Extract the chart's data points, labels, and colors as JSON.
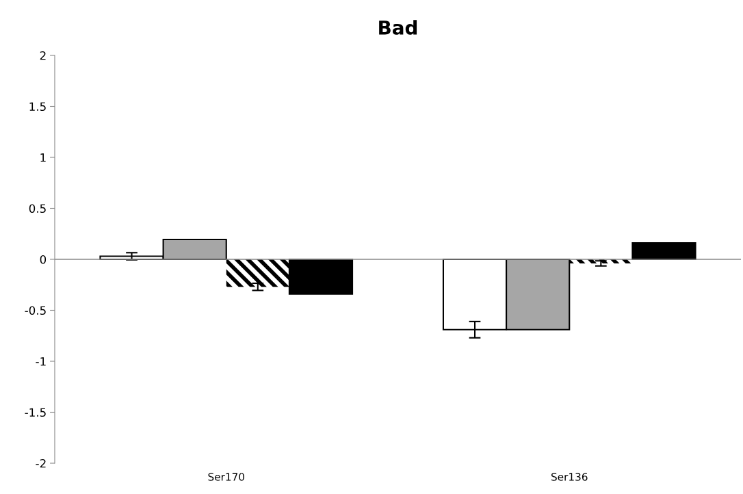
{
  "chart_data": {
    "type": "bar",
    "title": "Bad",
    "categories": [
      "Ser170",
      "Ser136"
    ],
    "series": [
      {
        "color": "#ffffff",
        "values": [
          0.03,
          -0.69
        ],
        "errors": [
          0.035,
          0.08
        ]
      },
      {
        "color": "#a6a6a6",
        "values": [
          0.195,
          -0.69
        ]
      },
      {
        "color": "#000000",
        "values": [
          -0.27,
          -0.04
        ],
        "errors": [
          0.035,
          0.025
        ]
      },
      {
        "color": "#000000",
        "values": [
          -0.34,
          0.16
        ]
      }
    ],
    "ylim": [
      -2,
      2
    ],
    "yticks": [
      -2,
      -1.5,
      -1,
      -0.5,
      0,
      0.5,
      1,
      1.5,
      2
    ],
    "legend": false
  }
}
